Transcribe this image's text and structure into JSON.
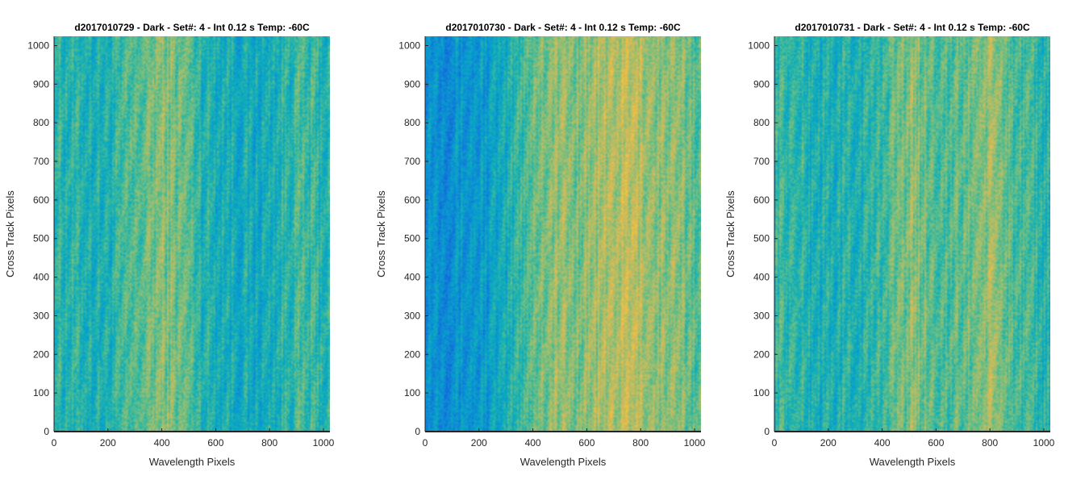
{
  "chart_data": [
    {
      "type": "heatmap",
      "title": "d2017010729 - Dark - Set#: 4 - Int 0.12 s Temp: -60C",
      "xlabel": "Wavelength Pixels",
      "ylabel": "Cross Track Pixels",
      "xlim": [
        0,
        1024
      ],
      "ylim": [
        0,
        1024
      ],
      "xticks": [
        0,
        200,
        400,
        600,
        800,
        1000
      ],
      "yticks": [
        0,
        100,
        200,
        300,
        400,
        500,
        600,
        700,
        800,
        900,
        1000
      ],
      "colormap": "parula",
      "column_profile": {
        "x": [
          0,
          50,
          100,
          150,
          200,
          250,
          300,
          350,
          400,
          450,
          500,
          550,
          600,
          650,
          700,
          750,
          800,
          850,
          900,
          950,
          1000,
          1024
        ],
        "level": [
          0.45,
          0.42,
          0.42,
          0.4,
          0.4,
          0.44,
          0.48,
          0.52,
          0.56,
          0.54,
          0.5,
          0.42,
          0.4,
          0.39,
          0.37,
          0.36,
          0.38,
          0.42,
          0.46,
          0.44,
          0.42,
          0.42
        ]
      }
    },
    {
      "type": "heatmap",
      "title": "d2017010730 - Dark - Set#: 4 - Int 0.12 s Temp: -60C",
      "xlabel": "Wavelength Pixels",
      "ylabel": "Cross Track Pixels",
      "xlim": [
        0,
        1024
      ],
      "ylim": [
        0,
        1024
      ],
      "xticks": [
        0,
        200,
        400,
        600,
        800,
        1000
      ],
      "yticks": [
        0,
        100,
        200,
        300,
        400,
        500,
        600,
        700,
        800,
        900,
        1000
      ],
      "colormap": "parula",
      "column_profile": {
        "x": [
          0,
          50,
          100,
          150,
          200,
          250,
          300,
          350,
          400,
          450,
          500,
          550,
          600,
          650,
          700,
          750,
          800,
          850,
          900,
          950,
          1000,
          1024
        ],
        "level": [
          0.3,
          0.28,
          0.28,
          0.29,
          0.3,
          0.32,
          0.36,
          0.46,
          0.52,
          0.56,
          0.58,
          0.55,
          0.58,
          0.6,
          0.62,
          0.64,
          0.62,
          0.58,
          0.56,
          0.54,
          0.52,
          0.52
        ]
      }
    },
    {
      "type": "heatmap",
      "title": "d2017010731 - Dark - Set#: 4 - Int 0.12 s Temp: -60C",
      "xlabel": "Wavelength Pixels",
      "ylabel": "Cross Track Pixels",
      "xlim": [
        0,
        1024
      ],
      "ylim": [
        0,
        1024
      ],
      "xticks": [
        0,
        200,
        400,
        600,
        800,
        1000
      ],
      "yticks": [
        0,
        100,
        200,
        300,
        400,
        500,
        600,
        700,
        800,
        900,
        1000
      ],
      "colormap": "parula",
      "column_profile": {
        "x": [
          0,
          50,
          100,
          150,
          200,
          250,
          300,
          350,
          400,
          450,
          500,
          550,
          600,
          650,
          700,
          750,
          800,
          850,
          900,
          950,
          1000,
          1024
        ],
        "level": [
          0.46,
          0.44,
          0.42,
          0.4,
          0.4,
          0.4,
          0.4,
          0.42,
          0.46,
          0.52,
          0.56,
          0.54,
          0.5,
          0.48,
          0.5,
          0.55,
          0.58,
          0.54,
          0.46,
          0.44,
          0.42,
          0.42
        ]
      }
    }
  ]
}
